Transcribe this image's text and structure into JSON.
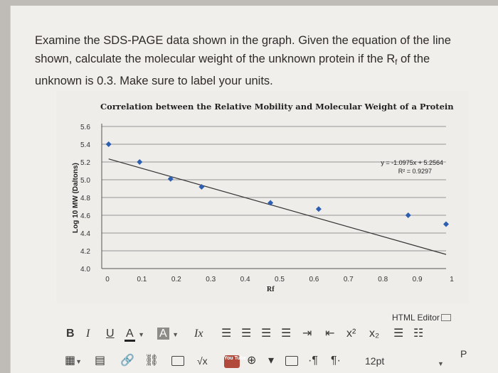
{
  "question": {
    "line1": "Examine the SDS-PAGE data shown in the graph. Given the equation of the line",
    "line2a": "shown, calculate the molecular weight of the unknown protein if the R",
    "line2_sub": "f",
    "line2b": " of the",
    "line3": "unknown is 0.3. Make sure to label your units."
  },
  "chart_data": {
    "type": "scatter",
    "title": "Correlation between the Relative Mobility and Molecular Weight of a Protein",
    "xlabel": "Rf",
    "ylabel": "Log 10 MW (Daltons)",
    "xlim": [
      0,
      1
    ],
    "ylim": [
      4.0,
      5.6
    ],
    "x_ticks": [
      "0",
      "0.1",
      "0.2",
      "0.3",
      "0.4",
      "0.5",
      "0.6",
      "0.7",
      "0.8",
      "0.9",
      "1"
    ],
    "y_ticks": [
      "4.0",
      "4.2",
      "4.4",
      "4.6",
      "4.8",
      "5.0",
      "5.2",
      "5.4",
      "5.6"
    ],
    "grid": true,
    "points": [
      {
        "x": 0.02,
        "y": 5.4
      },
      {
        "x": 0.11,
        "y": 5.2
      },
      {
        "x": 0.2,
        "y": 5.01
      },
      {
        "x": 0.29,
        "y": 4.92
      },
      {
        "x": 0.49,
        "y": 4.74
      },
      {
        "x": 0.63,
        "y": 4.67
      },
      {
        "x": 0.89,
        "y": 4.6
      },
      {
        "x": 1.0,
        "y": 4.5
      }
    ],
    "trendline": {
      "slope": -1.0975,
      "intercept": 5.2564
    },
    "equation": "y = -1.0975x + 5.2564",
    "r_squared": "R² = 0.9297",
    "marker_color": "#2c5fb0",
    "line_color": "#333333"
  },
  "editor": {
    "label": "HTML Editor",
    "bold": "B",
    "italic": "I",
    "underline": "U",
    "font_color": "A",
    "bg_color": "A",
    "clear_format": "Ix",
    "superscript": "x²",
    "subscript": "x₂",
    "ul_list": "☰",
    "ol_list": "☷",
    "ltr": "¶",
    "rtl": "¶",
    "font_size": "12pt",
    "paragraph": "P",
    "youtube": "You Tube",
    "sqrt": "√x"
  }
}
